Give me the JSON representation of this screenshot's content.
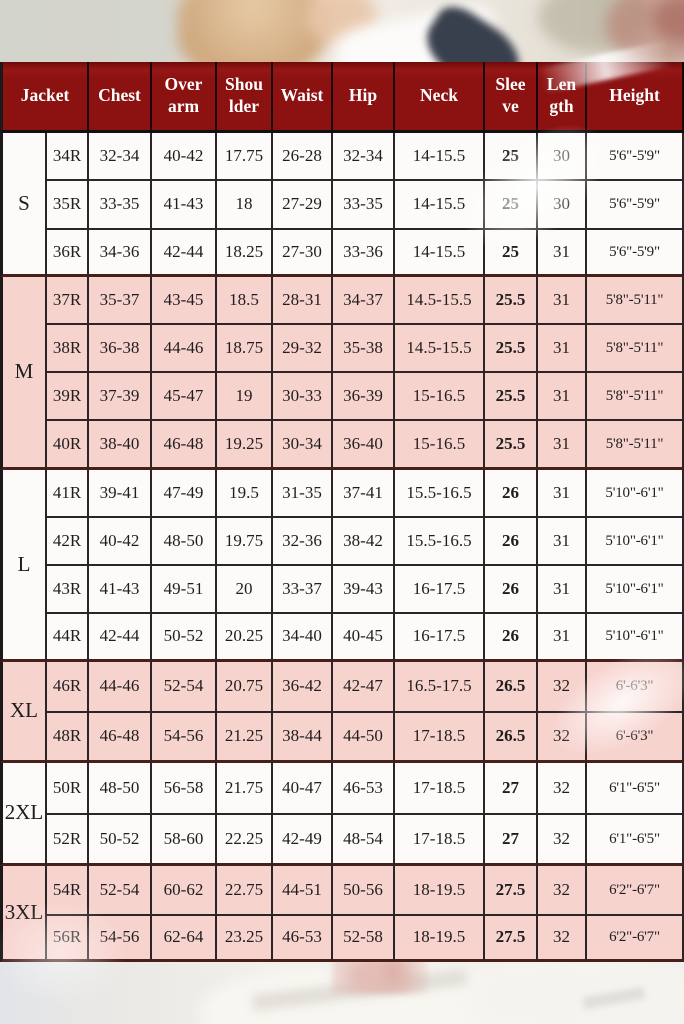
{
  "colors": {
    "header_bg": "#8c1111",
    "header_text": "#ffffff",
    "row_pink": "#f7d3ce",
    "row_white": "#fcfbf9",
    "grid_line": "#2b2527",
    "group_line": "#47201a",
    "body_text": "#211d1e"
  },
  "table": {
    "columns": [
      {
        "key": "jacket",
        "label": "Jacket"
      },
      {
        "key": "chest",
        "label": "Chest"
      },
      {
        "key": "overarm",
        "label": "Over\narm"
      },
      {
        "key": "shoulder",
        "label": "Shou\nlder"
      },
      {
        "key": "waist",
        "label": "Waist"
      },
      {
        "key": "hip",
        "label": "Hip"
      },
      {
        "key": "neck",
        "label": "Neck"
      },
      {
        "key": "sleeve",
        "label": "Slee\nve"
      },
      {
        "key": "length",
        "label": "Len\ngth"
      },
      {
        "key": "height",
        "label": "Height"
      }
    ],
    "groups": [
      {
        "label": "S",
        "rows": [
          [
            "34R",
            "32-34",
            "40-42",
            "17.75",
            "26-28",
            "32-34",
            "14-15.5",
            "25",
            "30",
            "5'6\"-5'9\""
          ],
          [
            "35R",
            "33-35",
            "41-43",
            "18",
            "27-29",
            "33-35",
            "14-15.5",
            "25",
            "30",
            "5'6\"-5'9\""
          ],
          [
            "36R",
            "34-36",
            "42-44",
            "18.25",
            "27-30",
            "33-36",
            "14-15.5",
            "25",
            "31",
            "5'6\"-5'9\""
          ]
        ]
      },
      {
        "label": "M",
        "rows": [
          [
            "37R",
            "35-37",
            "43-45",
            "18.5",
            "28-31",
            "34-37",
            "14.5-15.5",
            "25.5",
            "31",
            "5'8\"-5'11\""
          ],
          [
            "38R",
            "36-38",
            "44-46",
            "18.75",
            "29-32",
            "35-38",
            "14.5-15.5",
            "25.5",
            "31",
            "5'8\"-5'11\""
          ],
          [
            "39R",
            "37-39",
            "45-47",
            "19",
            "30-33",
            "36-39",
            "15-16.5",
            "25.5",
            "31",
            "5'8\"-5'11\""
          ],
          [
            "40R",
            "38-40",
            "46-48",
            "19.25",
            "30-34",
            "36-40",
            "15-16.5",
            "25.5",
            "31",
            "5'8\"-5'11\""
          ]
        ]
      },
      {
        "label": "L",
        "rows": [
          [
            "41R",
            "39-41",
            "47-49",
            "19.5",
            "31-35",
            "37-41",
            "15.5-16.5",
            "26",
            "31",
            "5'10\"-6'1\""
          ],
          [
            "42R",
            "40-42",
            "48-50",
            "19.75",
            "32-36",
            "38-42",
            "15.5-16.5",
            "26",
            "31",
            "5'10\"-6'1\""
          ],
          [
            "43R",
            "41-43",
            "49-51",
            "20",
            "33-37",
            "39-43",
            "16-17.5",
            "26",
            "31",
            "5'10\"-6'1\""
          ],
          [
            "44R",
            "42-44",
            "50-52",
            "20.25",
            "34-40",
            "40-45",
            "16-17.5",
            "26",
            "31",
            "5'10\"-6'1\""
          ]
        ]
      },
      {
        "label": "XL",
        "rows": [
          [
            "46R",
            "44-46",
            "52-54",
            "20.75",
            "36-42",
            "42-47",
            "16.5-17.5",
            "26.5",
            "32",
            "6'-6'3\""
          ],
          [
            "48R",
            "46-48",
            "54-56",
            "21.25",
            "38-44",
            "44-50",
            "17-18.5",
            "26.5",
            "32",
            "6'-6'3\""
          ]
        ]
      },
      {
        "label": "2XL",
        "rows": [
          [
            "50R",
            "48-50",
            "56-58",
            "21.75",
            "40-47",
            "46-53",
            "17-18.5",
            "27",
            "32",
            "6'1\"-6'5\""
          ],
          [
            "52R",
            "50-52",
            "58-60",
            "22.25",
            "42-49",
            "48-54",
            "17-18.5",
            "27",
            "32",
            "6'1\"-6'5\""
          ]
        ]
      },
      {
        "label": "3XL",
        "rows": [
          [
            "54R",
            "52-54",
            "60-62",
            "22.75",
            "44-51",
            "50-56",
            "18-19.5",
            "27.5",
            "32",
            "6'2\"-6'7\""
          ],
          [
            "56R",
            "54-56",
            "62-64",
            "23.25",
            "46-53",
            "52-58",
            "18-19.5",
            "27.5",
            "32",
            "6'2\"-6'7\""
          ]
        ]
      }
    ]
  }
}
